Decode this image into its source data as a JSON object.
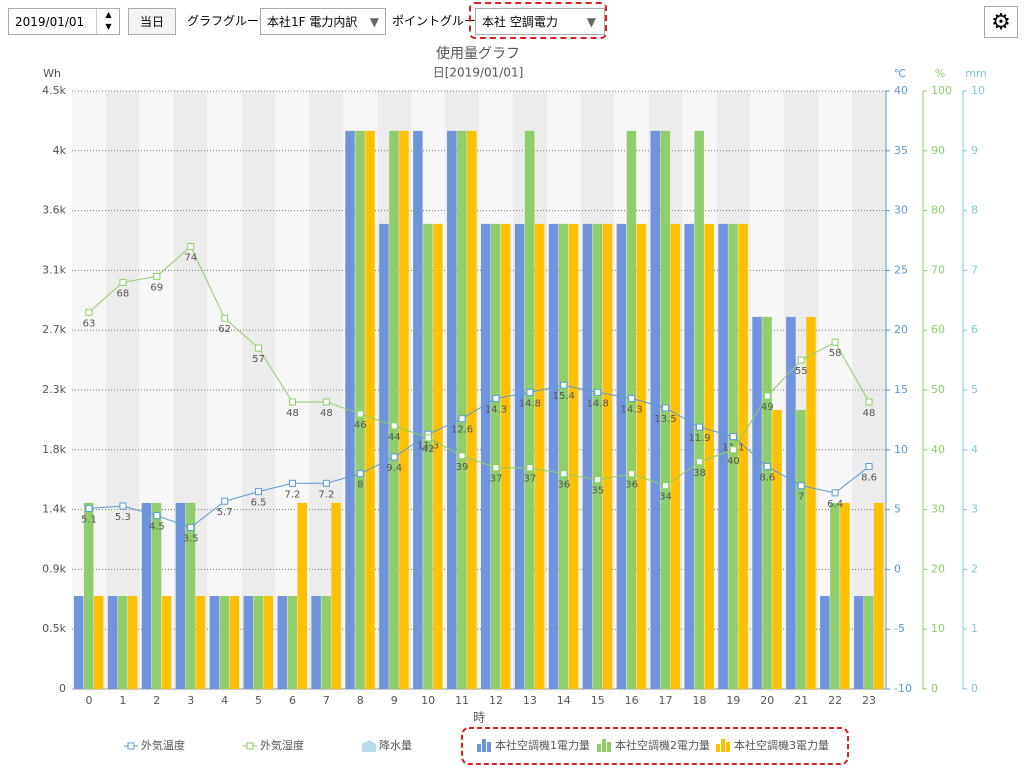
{
  "toolbar": {
    "date": "2019/01/01",
    "today_button": "当日",
    "graph_group_label": "グラフグループ:",
    "graph_group": "本社1F 電力内訳",
    "point_group_label": "ポイントグループ:",
    "point_group": "本社 空調電力"
  },
  "chart_data": {
    "type": "bar",
    "title": "使用量グラフ",
    "subtitle": "日[2019/01/01]",
    "x_label": "時",
    "y_label": "Wh",
    "y2_label": "℃",
    "y3_label": "%",
    "y4_label": "mm",
    "categories": [
      "0",
      "1",
      "2",
      "3",
      "4",
      "5",
      "6",
      "7",
      "8",
      "9",
      "10",
      "11",
      "12",
      "13",
      "14",
      "15",
      "16",
      "17",
      "18",
      "19",
      "20",
      "21",
      "22",
      "23"
    ],
    "series": [
      {
        "name": "外気温度",
        "type": "line",
        "axis": "y2",
        "color": "#5b9bd5",
        "values": [
          5.1,
          5.3,
          4.5,
          3.5,
          5.7,
          6.5,
          7.2,
          7.2,
          8,
          9.4,
          11.3,
          12.6,
          14.3,
          14.8,
          15.4,
          14.8,
          14.3,
          13.5,
          11.9,
          11.1,
          8.6,
          7,
          6.4,
          8.6
        ]
      },
      {
        "name": "外気湿度",
        "type": "line",
        "axis": "y3",
        "color": "#8fce6a",
        "values": [
          63,
          68,
          69,
          74,
          62,
          57,
          48,
          48,
          46,
          44,
          42,
          39,
          37,
          37,
          36,
          35,
          36,
          34,
          38,
          40,
          49,
          55,
          58,
          48
        ]
      },
      {
        "name": "降水量",
        "type": "rain",
        "axis": "y4",
        "color": "#b7dde8"
      },
      {
        "name": "本社空調機1電力量",
        "type": "bar",
        "color": "#7094db",
        "values": [
          700,
          700,
          1400,
          1400,
          700,
          700,
          700,
          700,
          4200,
          3500,
          4200,
          4200,
          3500,
          3500,
          3500,
          3500,
          3500,
          4200,
          3500,
          3500,
          2800,
          2800,
          700,
          700
        ]
      },
      {
        "name": "本社空調機2電力量",
        "type": "bar",
        "color": "#8fce6a",
        "values": [
          1400,
          700,
          1400,
          1400,
          700,
          700,
          700,
          700,
          4200,
          4200,
          3500,
          4200,
          3500,
          4200,
          3500,
          3500,
          4200,
          4200,
          4200,
          3500,
          2800,
          2100,
          1400,
          700
        ]
      },
      {
        "name": "本社空調機3電力量",
        "type": "bar",
        "color": "#ffc000",
        "values": [
          700,
          700,
          700,
          700,
          700,
          700,
          1400,
          1400,
          4200,
          4200,
          3500,
          4200,
          3500,
          3500,
          3500,
          3500,
          3500,
          3500,
          3500,
          3500,
          2100,
          2800,
          1400,
          1400
        ]
      }
    ],
    "ylim": [
      0,
      4500
    ],
    "yticks": [
      0,
      {
        "value": 450,
        "label": "0.5k"
      },
      {
        "value": 900,
        "label": "0.9k"
      },
      {
        "value": 1350,
        "label": "1.4k"
      },
      {
        "value": 1800,
        "label": "1.8k"
      },
      {
        "value": 2250,
        "label": "2.3k"
      },
      {
        "value": 2700,
        "label": "2.7k"
      },
      {
        "value": 3150,
        "label": "3.1k"
      },
      {
        "value": 3600,
        "label": "3.6k"
      },
      {
        "value": 4050,
        "label": "4k"
      },
      {
        "value": 4500,
        "label": "4.5k"
      }
    ],
    "y2lim": [
      -10,
      40
    ],
    "y2ticks": [
      -10,
      -5,
      0,
      5,
      10,
      15,
      20,
      25,
      30,
      35,
      40
    ],
    "y3lim": [
      0,
      100
    ],
    "y3ticks": [
      0,
      10,
      20,
      30,
      40,
      50,
      60,
      70,
      80,
      90,
      100
    ],
    "y4lim": [
      0,
      10
    ],
    "y4ticks": [
      0,
      1,
      2,
      3,
      4,
      5,
      6,
      7,
      8,
      9,
      10
    ],
    "grid": true
  }
}
